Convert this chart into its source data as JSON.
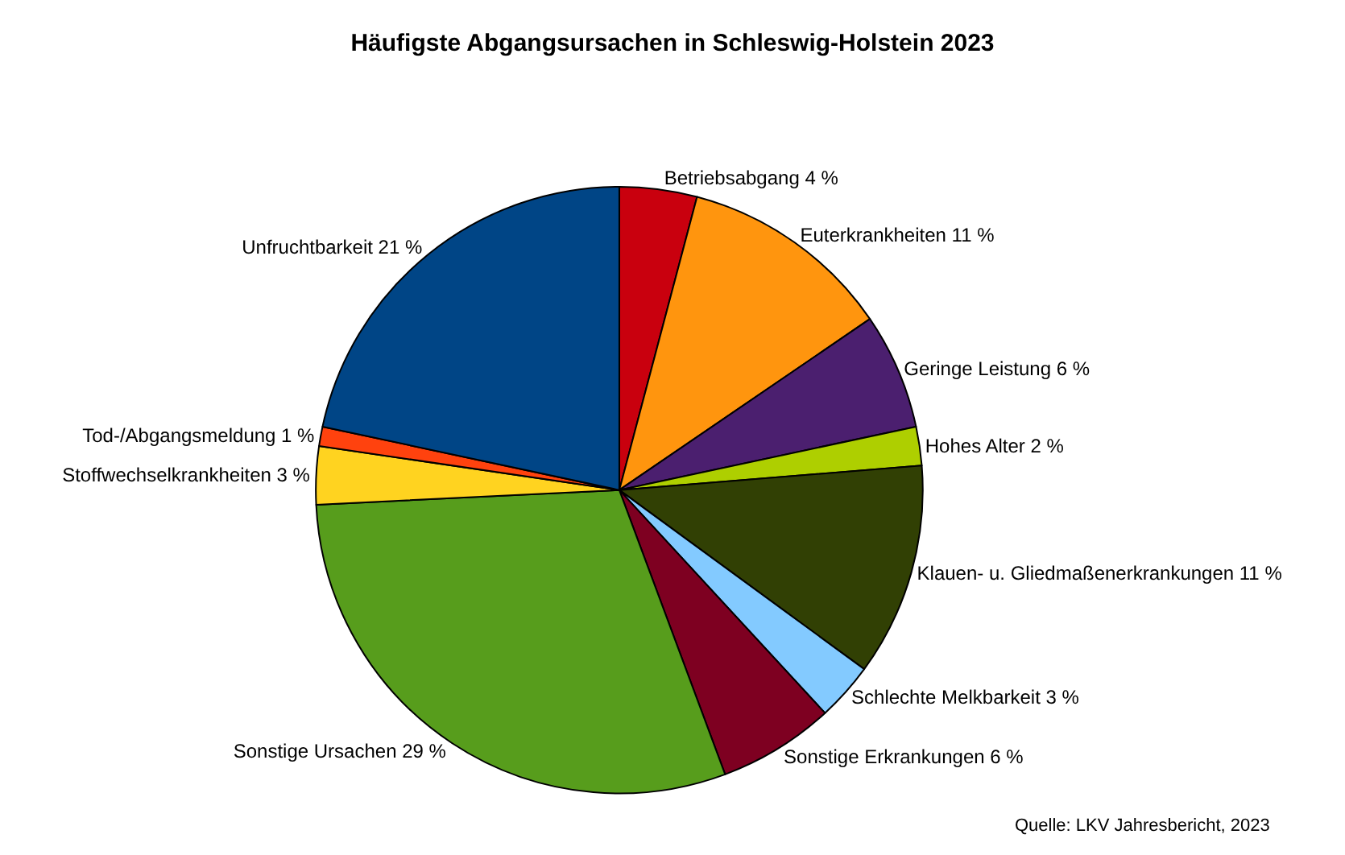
{
  "chart_data": {
    "type": "pie",
    "title": "Häufigste Abgangsursachen in Schleswig-Holstein 2023",
    "categories": [
      "Betriebsabgang",
      "Euterkrankheiten",
      "Geringe Leistung",
      "Hohes Alter",
      "Klauen- u. Gliedmaßenerkrankungen",
      "Schlechte Melkbarkeit",
      "Sonstige Erkrankungen",
      "Sonstige Ursachen",
      "Stoffwechselkrankheiten",
      "Tod-/Abgangsmeldung",
      "Unfruchtbarkeit"
    ],
    "values": [
      4,
      11,
      6,
      2,
      11,
      3,
      6,
      29,
      3,
      1,
      21
    ],
    "value_labels": [
      "4 %",
      "11 %",
      "6 %",
      "2 %",
      "11 %",
      "3 %",
      "6 %",
      "29 %",
      "3 %",
      "1 %",
      "21 %"
    ],
    "colors": [
      "#c9000e",
      "#ff950e",
      "#4b1f6f",
      "#aecf00",
      "#314004",
      "#83caff",
      "#7e0021",
      "#579d1c",
      "#ffd320",
      "#ff420e",
      "#004586"
    ],
    "legend": false,
    "annotations": [
      "Quelle: LKV Jahresbericht, 2023"
    ]
  }
}
